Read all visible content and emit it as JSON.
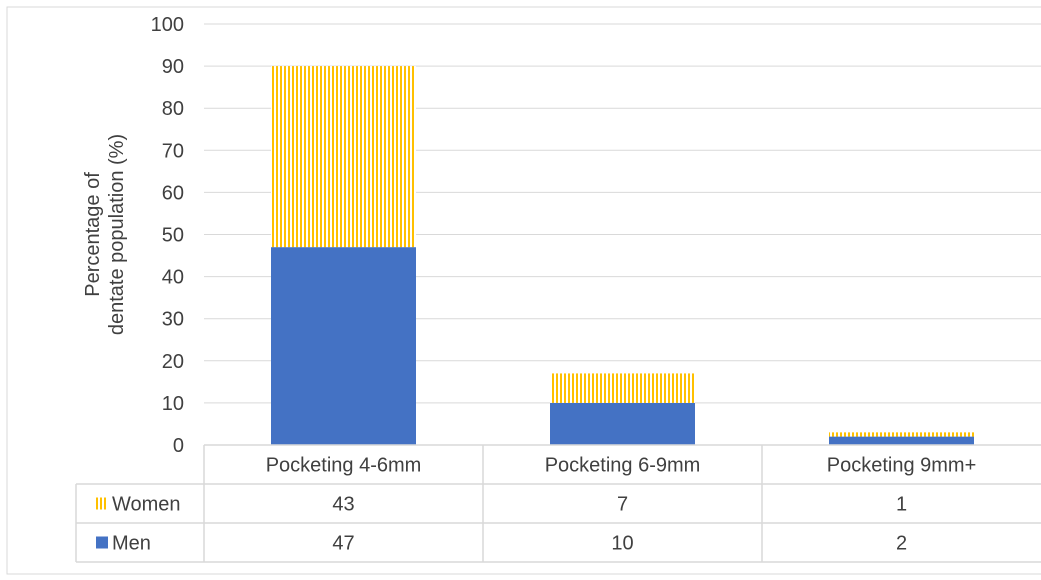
{
  "chart_data": {
    "type": "bar",
    "stacked": true,
    "title": "",
    "xlabel": "",
    "ylabel": "Percentage of dentate population (%)",
    "ylabel_lines": [
      "Percentage of",
      "dentate population (%)"
    ],
    "ylim": [
      0,
      100
    ],
    "yticks": [
      0,
      10,
      20,
      30,
      40,
      50,
      60,
      70,
      80,
      90,
      100
    ],
    "grid": true,
    "legend": "data-table",
    "categories": [
      "Pocketing 4-6mm",
      "Pocketing 6-9mm",
      "Pocketing 9mm+"
    ],
    "series": [
      {
        "name": "Men",
        "values": [
          47,
          10,
          2
        ],
        "color": "#4472c4",
        "pattern": "solid"
      },
      {
        "name": "Women",
        "values": [
          43,
          7,
          1
        ],
        "color": "#ffc000",
        "pattern": "vertical-stripes"
      }
    ],
    "table_rows": [
      "Women",
      "Men"
    ]
  }
}
